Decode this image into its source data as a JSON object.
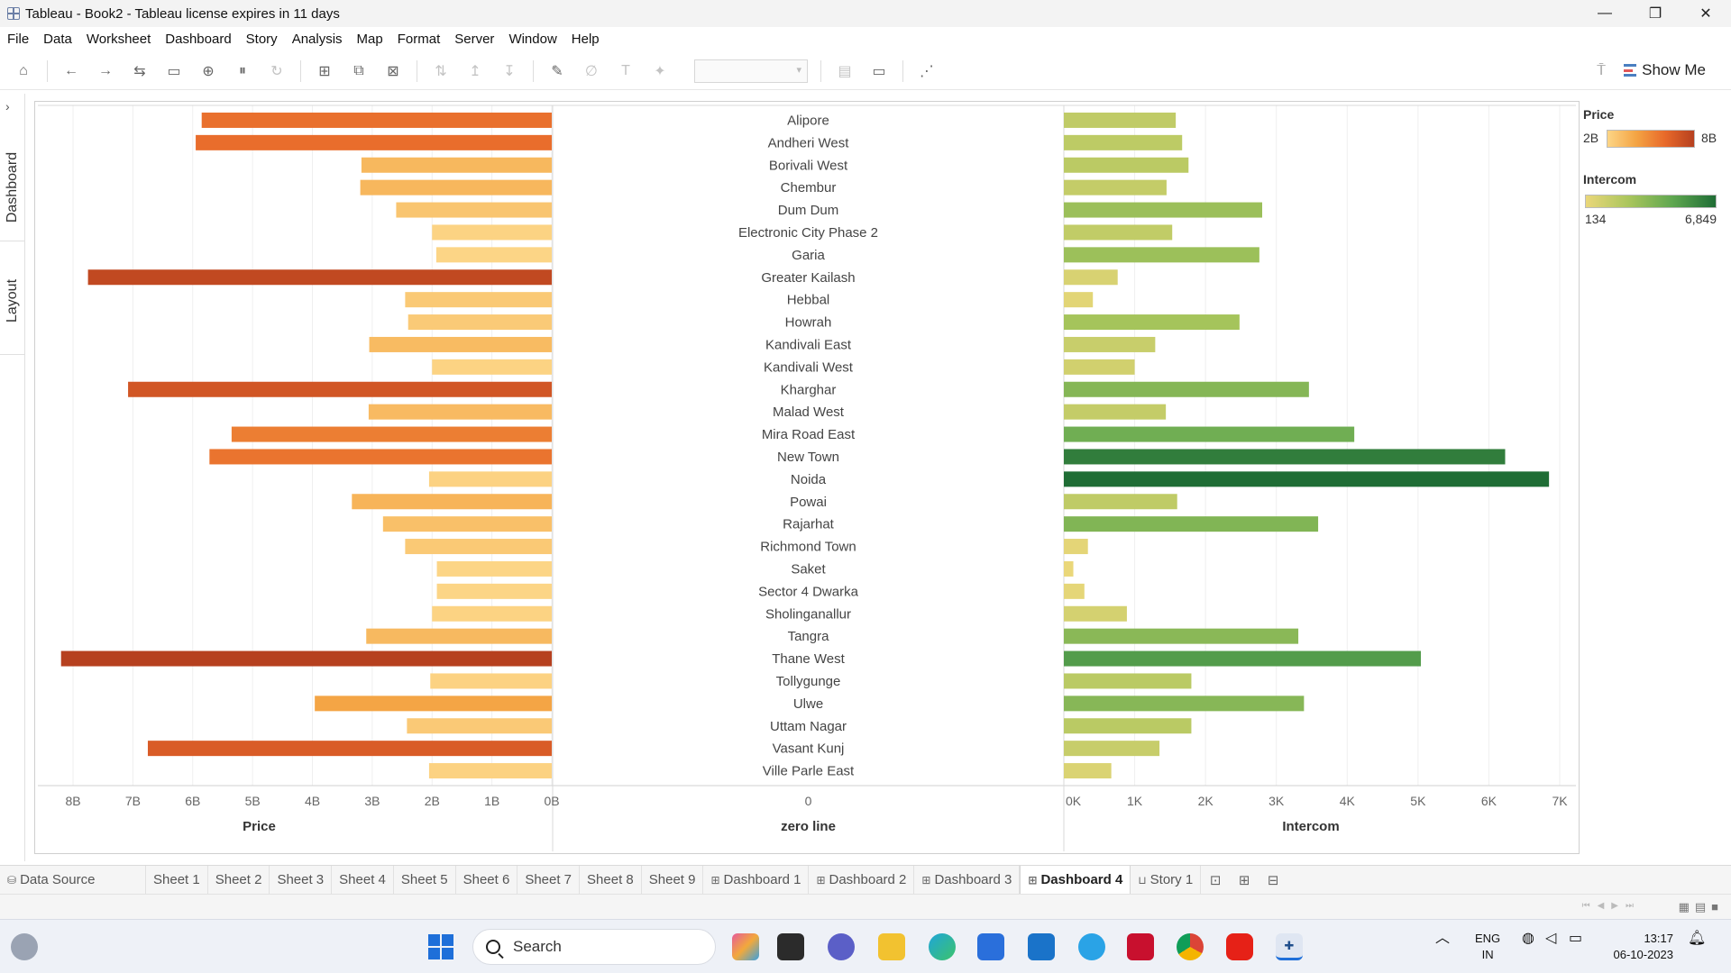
{
  "window": {
    "title": "Tableau - Book2 - Tableau license expires in 11 days",
    "controls": [
      "—",
      "❐",
      "✕"
    ]
  },
  "menu": [
    "File",
    "Data",
    "Worksheet",
    "Dashboard",
    "Story",
    "Analysis",
    "Map",
    "Format",
    "Server",
    "Window",
    "Help"
  ],
  "toolbar": {
    "show_me_label": "Show Me"
  },
  "side_tabs": {
    "dashboard": "Dashboard",
    "layout": "Layout"
  },
  "chart_data": {
    "type": "bar",
    "categories": [
      "Alipore",
      "Andheri West",
      "Borivali West",
      "Chembur",
      "Dum Dum",
      "Electronic City Phase 2",
      "Garia",
      "Greater Kailash",
      "Hebbal",
      "Howrah",
      "Kandivali East",
      "Kandivali West",
      "Kharghar",
      "Malad West",
      "Mira Road East",
      "New Town",
      "Noida",
      "Powai",
      "Rajarhat",
      "Richmond Town",
      "Saket",
      "Sector 4 Dwarka",
      "Sholinganallur",
      "Tangra",
      "Thane West",
      "Tollygunge",
      "Ulwe",
      "Uttam Nagar",
      "Vasant Kunj",
      "Ville Parle East"
    ],
    "series": [
      {
        "name": "Price",
        "values": [
          5.85,
          5.95,
          3.18,
          3.2,
          2.6,
          2.0,
          1.93,
          7.75,
          2.45,
          2.4,
          3.05,
          2.0,
          7.08,
          3.06,
          5.35,
          5.72,
          2.05,
          3.34,
          2.82,
          2.45,
          1.92,
          1.92,
          2.0,
          3.1,
          8.2,
          2.03,
          3.96,
          2.42,
          6.75,
          2.05
        ]
      },
      {
        "name": "zero line",
        "values": [
          0,
          0,
          0,
          0,
          0,
          0,
          0,
          0,
          0,
          0,
          0,
          0,
          0,
          0,
          0,
          0,
          0,
          0,
          0,
          0,
          0,
          0,
          0,
          0,
          0,
          0,
          0,
          0,
          0,
          0
        ]
      },
      {
        "name": "Intercom",
        "values": [
          1580,
          1670,
          1760,
          1450,
          2800,
          1530,
          2760,
          760,
          410,
          2480,
          1290,
          1000,
          3460,
          1440,
          4100,
          6230,
          6849,
          1600,
          3590,
          340,
          134,
          290,
          890,
          3310,
          5040,
          1800,
          3390,
          1800,
          1350,
          670
        ]
      }
    ],
    "panels": [
      {
        "name": "Price",
        "axis_label": "Price",
        "ticks": [
          "8B",
          "7B",
          "6B",
          "5B",
          "4B",
          "3B",
          "2B",
          "1B",
          "0B"
        ],
        "xlim": [
          8.6,
          0
        ],
        "reversed": true
      },
      {
        "name": "zero line",
        "axis_label": "zero line",
        "ticks": [
          "0"
        ]
      },
      {
        "name": "Intercom",
        "axis_label": "Intercom",
        "ticks": [
          "0K",
          "1K",
          "2K",
          "3K",
          "4K",
          "5K",
          "6K",
          "7K"
        ],
        "xlim": [
          0,
          7000
        ]
      }
    ],
    "grid": true
  },
  "legends": {
    "price": {
      "title": "Price",
      "min_label": "2B",
      "max_label": "8B",
      "min": 1.92,
      "max": 8.2,
      "colors": [
        "#fcd586",
        "#f4a443",
        "#e8692a",
        "#b6401f"
      ]
    },
    "intercom": {
      "title": "Intercom",
      "min_label": "134",
      "max_label": "6,849",
      "min": 134,
      "max": 6849,
      "colors": [
        "#ead77a",
        "#a9c55c",
        "#5fa750",
        "#1f6d35"
      ]
    }
  },
  "tabs": [
    {
      "label": "Data Source",
      "icon": "database-icon"
    },
    {
      "label": "Sheet 1"
    },
    {
      "label": "Sheet 2"
    },
    {
      "label": "Sheet 3"
    },
    {
      "label": "Sheet 4"
    },
    {
      "label": "Sheet 5"
    },
    {
      "label": "Sheet 6"
    },
    {
      "label": "Sheet 7"
    },
    {
      "label": "Sheet 8"
    },
    {
      "label": "Sheet 9"
    },
    {
      "label": "Dashboard 1",
      "icon": "dashboard-icon"
    },
    {
      "label": "Dashboard 2",
      "icon": "dashboard-icon"
    },
    {
      "label": "Dashboard 3",
      "icon": "dashboard-icon"
    },
    {
      "label": "Dashboard 4",
      "icon": "dashboard-icon",
      "active": true
    },
    {
      "label": "Story 1",
      "icon": "story-icon"
    }
  ],
  "taskbar": {
    "search_label": "Search",
    "language": "ENG",
    "region": "IN",
    "time": "13:17",
    "date": "06-10-2023"
  }
}
